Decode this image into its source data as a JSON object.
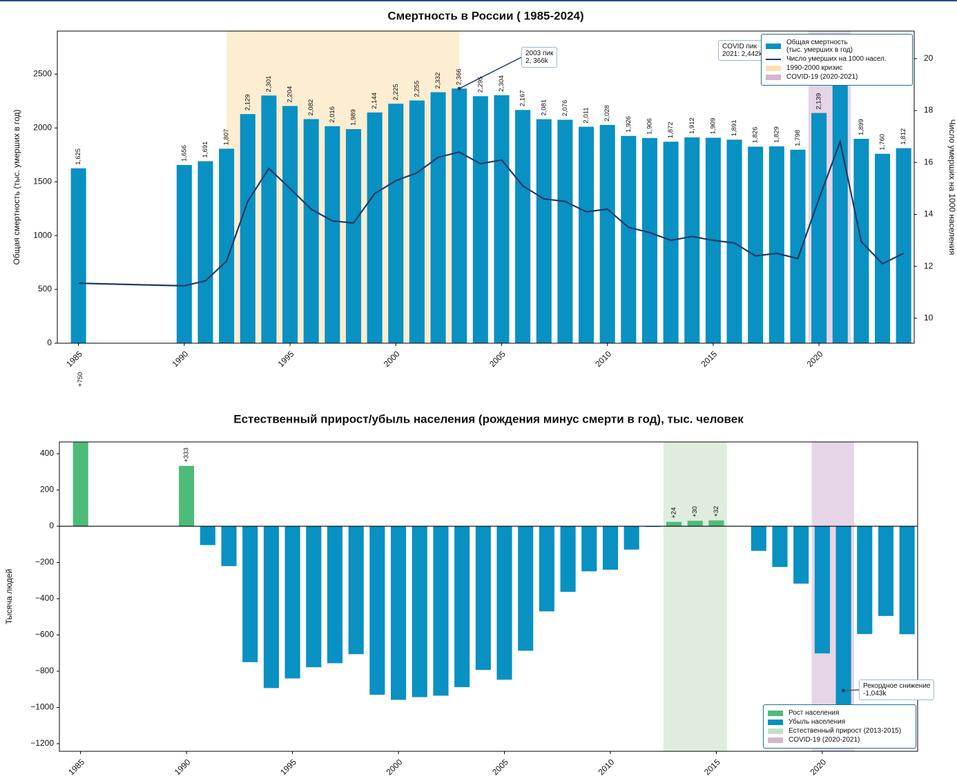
{
  "chart_data": [
    {
      "type": "bar",
      "title": "Смертность в России ( 1985-2024)",
      "ylabel": "Общая смертность (тыс. умерших в год)",
      "y2label": "Число умерших на 1000 населения",
      "x": [
        1985,
        1990,
        1991,
        1992,
        1993,
        1994,
        1995,
        1996,
        1997,
        1998,
        1999,
        2000,
        2001,
        2002,
        2003,
        2004,
        2005,
        2006,
        2007,
        2008,
        2009,
        2010,
        2011,
        2012,
        2013,
        2014,
        2015,
        2016,
        2017,
        2018,
        2019,
        2020,
        2021,
        2022,
        2023,
        2024
      ],
      "series": [
        {
          "name": "Общая смертность\n(тыс. умерших в год)",
          "type": "bar",
          "color": "#0891c2",
          "values": [
            1625,
            1656,
            1691,
            1807,
            2129,
            2301,
            2204,
            2082,
            2016,
            1989,
            2144,
            2225,
            2255,
            2332,
            2366,
            2295,
            2304,
            2167,
            2081,
            2076,
            2011,
            2028,
            1926,
            1906,
            1872,
            1912,
            1909,
            1891,
            1826,
            1829,
            1798,
            2139,
            2442,
            1899,
            1760,
            1812
          ],
          "value_labels": [
            "1,625",
            "1,656",
            "1,691",
            "1,807",
            "2,129",
            "2,301",
            "2,204",
            "2,082",
            "2,016",
            "1,989",
            "2,144",
            "2,225",
            "2,255",
            "2,332",
            "2,366",
            "2,295",
            "2,304",
            "2,167",
            "2,081",
            "2,076",
            "2,011",
            "2,028",
            "1,926",
            "1,906",
            "1,872",
            "1,912",
            "1,909",
            "1,891",
            "1,826",
            "1,829",
            "1,798",
            "2,139",
            null,
            "1,899",
            "1,760",
            "1,812"
          ]
        },
        {
          "name": "Число умерших на 1000 насел.",
          "type": "line",
          "axis": "y2",
          "color": "#1f3a68",
          "values": [
            11.35,
            11.25,
            11.44,
            12.2,
            14.5,
            15.77,
            15.0,
            14.2,
            13.75,
            13.67,
            14.8,
            15.3,
            15.6,
            16.2,
            16.4,
            15.95,
            16.1,
            15.1,
            14.6,
            14.5,
            14.1,
            14.2,
            13.5,
            13.3,
            13.0,
            13.15,
            13.0,
            12.9,
            12.4,
            12.5,
            12.3,
            14.6,
            16.8,
            12.95,
            12.1,
            12.5
          ]
        }
      ],
      "spans": [
        {
          "name": "1990-2000 кризис",
          "start": 1992,
          "end": 2003,
          "color": "#fbd89a"
        },
        {
          "name": "COVID-19 (2020-2021)",
          "start": 2019.5,
          "end": 2021.5,
          "color": "#c8a2c8"
        }
      ],
      "annotations": [
        {
          "text": "2003 пик\n2, 366k",
          "x": 2003,
          "y": 2366
        },
        {
          "text": "COVID пик\n2021: 2,442k",
          "x": 2021,
          "y": 2442
        }
      ],
      "xlim": [
        1984,
        2024.5
      ],
      "xticks": [
        1985,
        1990,
        1995,
        2000,
        2005,
        2010,
        2015,
        2020
      ],
      "ylim": [
        0,
        2900
      ],
      "yticks": [
        0,
        500,
        1000,
        1500,
        2000,
        2500
      ],
      "y2lim": [
        9.04,
        21.06
      ],
      "y2ticks": [
        10,
        12,
        14,
        16,
        18,
        20
      ],
      "legend": "upper right"
    },
    {
      "type": "bar",
      "title": "Естественный прирост/убыль населения (рождения минус смерти в год), тыс. человек",
      "ylabel": "Тысяча людей",
      "x": [
        1985,
        1990,
        1991,
        1992,
        1993,
        1994,
        1995,
        1996,
        1997,
        1998,
        1999,
        2000,
        2001,
        2002,
        2003,
        2004,
        2005,
        2006,
        2007,
        2008,
        2009,
        2010,
        2011,
        2012,
        2013,
        2014,
        2015,
        2016,
        2017,
        2018,
        2019,
        2020,
        2021,
        2022,
        2023,
        2024
      ],
      "series": [
        {
          "name": "Рост населения",
          "type": "bar",
          "color": "#4dbb7a",
          "values": [
            750,
            333,
            null,
            null,
            null,
            null,
            null,
            null,
            null,
            null,
            null,
            null,
            null,
            null,
            null,
            null,
            null,
            null,
            null,
            null,
            null,
            null,
            null,
            null,
            24,
            30,
            32,
            null,
            null,
            null,
            null,
            null,
            null,
            null,
            null,
            null
          ],
          "value_labels": [
            "+750",
            "+333",
            null,
            null,
            null,
            null,
            null,
            null,
            null,
            null,
            null,
            null,
            null,
            null,
            null,
            null,
            null,
            null,
            null,
            null,
            null,
            null,
            null,
            null,
            "+24",
            "+30",
            "+32",
            null,
            null,
            null,
            null,
            null,
            null,
            null,
            null,
            null
          ]
        },
        {
          "name": "Убыль населения",
          "type": "bar",
          "color": "#0891c2",
          "values": [
            null,
            null,
            -104,
            -220,
            -750,
            -893,
            -840,
            -778,
            -756,
            -706,
            -930,
            -958,
            -943,
            -935,
            -888,
            -793,
            -847,
            -687,
            -470,
            -362,
            -249,
            -240,
            -129,
            -4,
            null,
            null,
            null,
            -2,
            -136,
            -225,
            -317,
            -702,
            -1043,
            -595,
            -495,
            -596
          ]
        }
      ],
      "spans": [
        {
          "name": "Естественный прирост (2013-2015)",
          "start": 2012.5,
          "end": 2015.5,
          "color": "#b5d8b5"
        },
        {
          "name": "COVID-19 (2020-2021)",
          "start": 2019.5,
          "end": 2021.5,
          "color": "#c8a2c8"
        }
      ],
      "annotations": [
        {
          "text": "Рекордное снижение\n-1,043k",
          "x": 2021,
          "y": -907
        }
      ],
      "xlim": [
        1984,
        2024.5
      ],
      "xticks": [
        1985,
        1990,
        1995,
        2000,
        2005,
        2010,
        2015,
        2020
      ],
      "ylim": [
        -1242,
        465
      ],
      "yticks": [
        {
          "value": -1200,
          "label": "−1200"
        },
        {
          "value": -1000,
          "label": "−1000"
        },
        {
          "value": -800,
          "label": "−800"
        },
        {
          "value": -600,
          "label": "−600"
        },
        {
          "value": -400,
          "label": "−400"
        },
        {
          "value": -200,
          "label": "−200"
        },
        0,
        200,
        400
      ],
      "zero_line": true,
      "legend": "lower right"
    }
  ]
}
